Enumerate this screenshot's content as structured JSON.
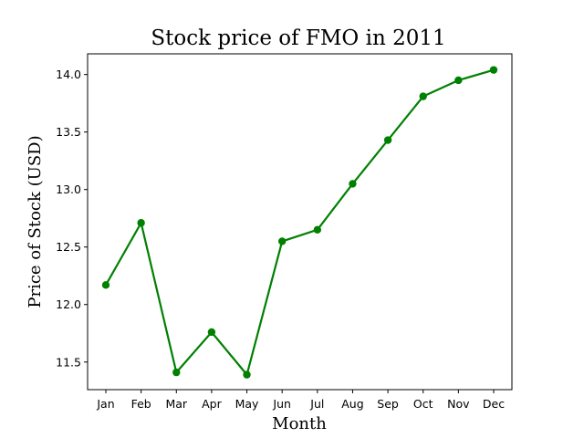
{
  "chart_data": {
    "type": "line",
    "title": "Stock price of FMO in 2011",
    "xlabel": "Month",
    "ylabel": "Price of Stock (USD)",
    "categories": [
      "Jan",
      "Feb",
      "Mar",
      "Apr",
      "May",
      "Jun",
      "Jul",
      "Aug",
      "Sep",
      "Oct",
      "Nov",
      "Dec"
    ],
    "series": [
      {
        "values": [
          12.17,
          12.71,
          11.41,
          11.76,
          11.39,
          12.55,
          12.65,
          13.05,
          13.43,
          13.81,
          13.95,
          14.04
        ],
        "color": "#008000"
      }
    ],
    "ylim": [
      11.26,
      14.18
    ],
    "yticks": [
      11.5,
      12.0,
      12.5,
      13.0,
      13.5,
      14.0
    ],
    "ytick_labels": [
      "11.5",
      "12.0",
      "12.5",
      "13.0",
      "13.5",
      "14.0"
    ],
    "grid": false,
    "marker": "circle"
  }
}
